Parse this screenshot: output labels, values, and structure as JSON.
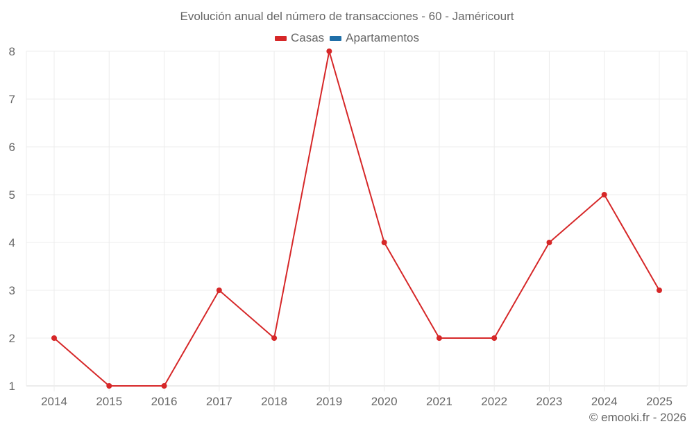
{
  "chart_data": {
    "type": "line",
    "title": "Evolución anual del número de transacciones - 60 - Jaméricourt",
    "xlabel": "",
    "ylabel": "",
    "categories": [
      "2014",
      "2015",
      "2016",
      "2017",
      "2018",
      "2019",
      "2020",
      "2021",
      "2022",
      "2023",
      "2024",
      "2025"
    ],
    "series": [
      {
        "name": "Casas",
        "color": "#d62728",
        "values": [
          2,
          1,
          1,
          3,
          2,
          8,
          4,
          2,
          2,
          4,
          5,
          3
        ]
      },
      {
        "name": "Apartamentos",
        "color": "#1f6fa8",
        "values": []
      }
    ],
    "yticks": [
      1,
      2,
      3,
      4,
      5,
      6,
      7,
      8
    ],
    "ylim": [
      1,
      8
    ],
    "grid": true,
    "legend_position": "top"
  },
  "legend": {
    "items": [
      {
        "label": "Casas",
        "color": "#d62728"
      },
      {
        "label": "Apartamentos",
        "color": "#1f6fa8"
      }
    ]
  },
  "credit": "© emooki.fr - 2026"
}
